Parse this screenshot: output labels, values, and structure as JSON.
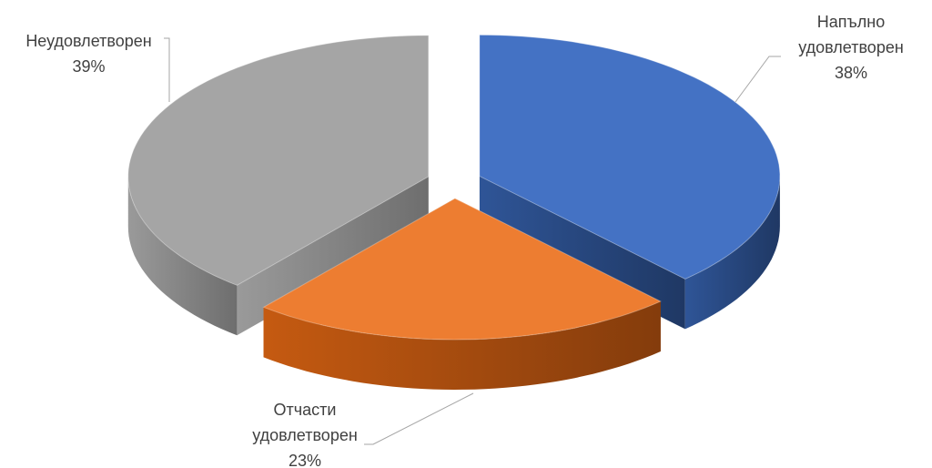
{
  "chart_data": {
    "type": "pie",
    "categories": [
      "Напълно удовлетворен",
      "Отчасти удовлетворен",
      "Неудовлетворен"
    ],
    "values": [
      38,
      23,
      39
    ],
    "value_labels": [
      "38%",
      "23%",
      "39%"
    ],
    "colors": [
      "#4472c4",
      "#ed7d31",
      "#a5a5a5"
    ]
  }
}
